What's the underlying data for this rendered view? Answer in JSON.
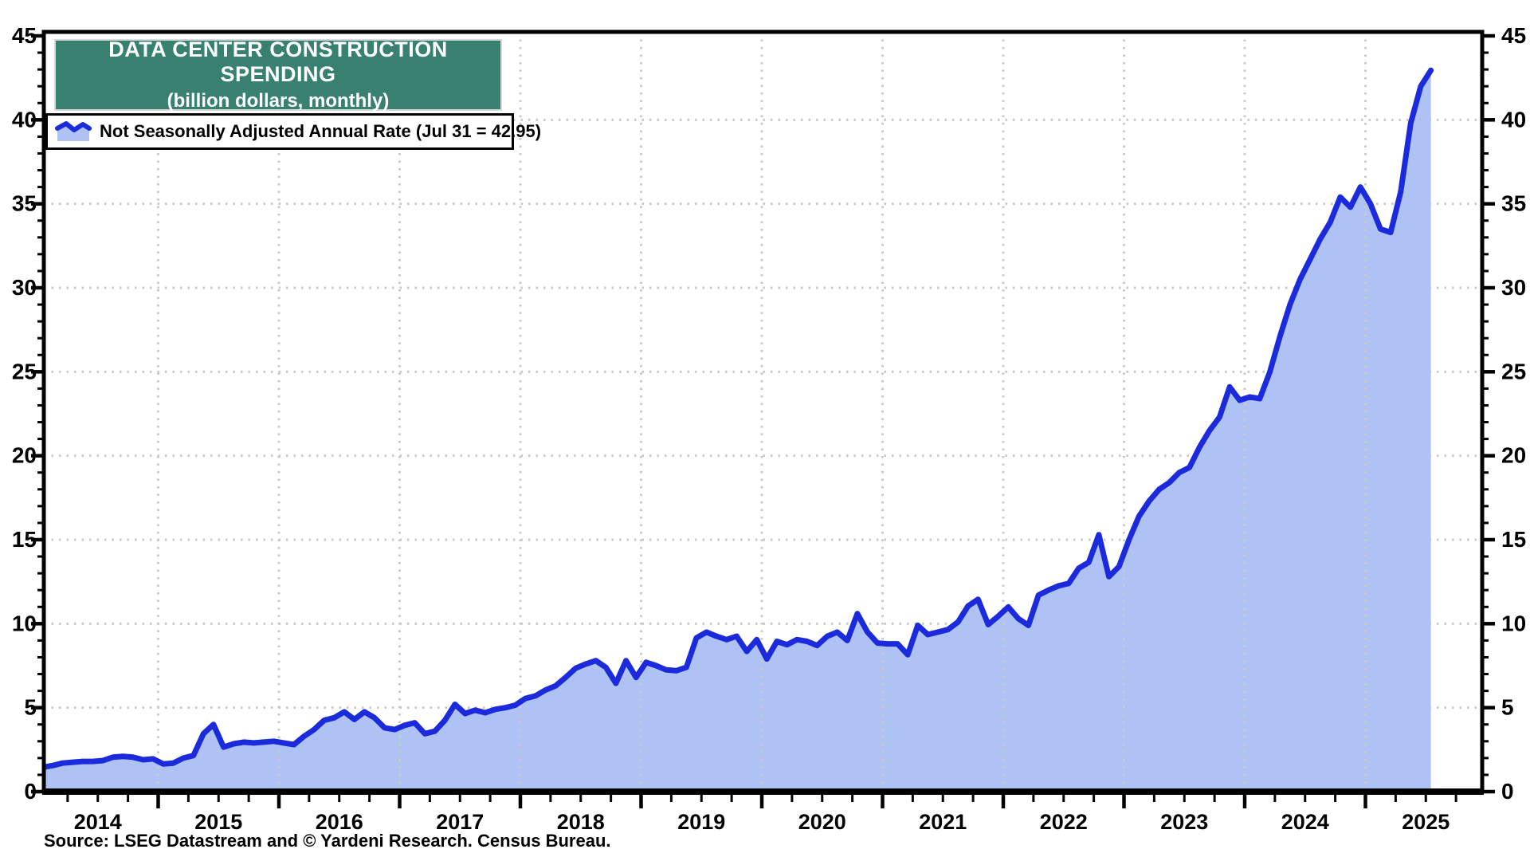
{
  "header": {
    "title": "DATA CENTER CONSTRUCTION SPENDING",
    "subtitle": "(billion dollars, monthly)"
  },
  "legend": {
    "label": "Not Seasonally Adjusted Annual Rate (Jul 31 = 42.95)",
    "swatch_icon": "area-line-swatch"
  },
  "footer": {
    "source": "Source: LSEG Datastream and © Yardeni Research. Census Bureau."
  },
  "colors": {
    "line": "#1b2bdb",
    "fill": "#afc2f4",
    "title_bg": "#388170",
    "title_text": "#ffffff",
    "grid": "#c9c9c9",
    "axis": "#000000",
    "label_text": "#000000"
  },
  "chart_data": {
    "type": "area",
    "title": "DATA CENTER CONSTRUCTION SPENDING",
    "subtitle": "(billion dollars, monthly)",
    "series_name": "Not Seasonally Adjusted Annual Rate",
    "last_point_label": "Jul 31 = 42.95",
    "unit": "billion dollars",
    "frequency": "monthly",
    "start_month": "2014-01",
    "end_month": "2025-07",
    "x_tick_years": [
      2014,
      2015,
      2016,
      2017,
      2018,
      2019,
      2020,
      2021,
      2022,
      2023,
      2024,
      2025
    ],
    "ylim": [
      0,
      45
    ],
    "y_tick_step_major": 5,
    "y_tick_step_minor": 1,
    "grid": "dotted",
    "legend_position": "top-left",
    "values": [
      1.45,
      1.55,
      1.7,
      1.75,
      1.8,
      1.8,
      1.85,
      2.05,
      2.1,
      2.05,
      1.9,
      1.95,
      1.65,
      1.7,
      2.0,
      2.15,
      3.45,
      4.0,
      2.65,
      2.85,
      2.95,
      2.9,
      2.95,
      3.0,
      2.9,
      2.8,
      3.3,
      3.7,
      4.25,
      4.4,
      4.75,
      4.3,
      4.75,
      4.4,
      3.8,
      3.7,
      3.95,
      4.1,
      3.45,
      3.6,
      4.25,
      5.2,
      4.65,
      4.85,
      4.7,
      4.9,
      5.0,
      5.15,
      5.55,
      5.7,
      6.05,
      6.3,
      6.8,
      7.35,
      7.6,
      7.8,
      7.4,
      6.45,
      7.8,
      6.8,
      7.7,
      7.5,
      7.25,
      7.2,
      7.4,
      9.15,
      9.5,
      9.25,
      9.05,
      9.25,
      8.35,
      9.05,
      7.9,
      8.95,
      8.75,
      9.05,
      8.95,
      8.7,
      9.25,
      9.5,
      9.0,
      10.6,
      9.5,
      8.85,
      8.8,
      8.8,
      8.15,
      9.9,
      9.35,
      9.5,
      9.65,
      10.1,
      11.05,
      11.45,
      9.95,
      10.45,
      11.0,
      10.3,
      9.9,
      11.7,
      12.0,
      12.25,
      12.4,
      13.3,
      13.65,
      15.3,
      12.8,
      13.4,
      15.0,
      16.4,
      17.3,
      18.0,
      18.4,
      19.0,
      19.3,
      20.5,
      21.5,
      22.3,
      24.1,
      23.3,
      23.5,
      23.4,
      25.0,
      27.1,
      29.0,
      30.5,
      31.7,
      32.9,
      33.9,
      35.4,
      34.8,
      36.0,
      35.0,
      33.5,
      33.3,
      35.7,
      39.8,
      42.0,
      42.95
    ]
  }
}
